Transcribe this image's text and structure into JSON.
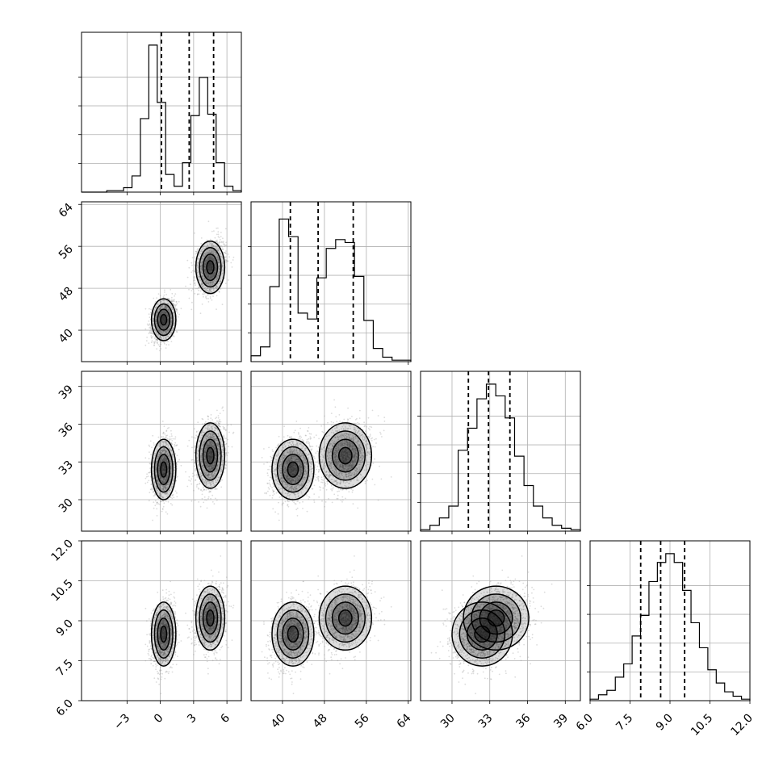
{
  "chart_data": {
    "type": "corner",
    "description_ticks": "tick labels as printed",
    "parameters": [
      {
        "ticks": [
          "−3",
          "0",
          "3",
          "6"
        ],
        "tick_values": [
          -3,
          0,
          3,
          6
        ],
        "range": [
          -7.1,
          7.3
        ],
        "quantiles": [
          0.1,
          2.6,
          4.8
        ]
      },
      {
        "ticks": [
          "40",
          "48",
          "56",
          "64"
        ],
        "tick_values": [
          40,
          48,
          56,
          64
        ],
        "range": [
          34.0,
          64.5
        ],
        "quantiles": [
          41.5,
          46.8,
          53.5
        ]
      },
      {
        "ticks": [
          "30",
          "33",
          "36",
          "39"
        ],
        "tick_values": [
          30,
          33,
          36,
          39
        ],
        "range": [
          27.5,
          40.2
        ],
        "quantiles": [
          31.3,
          32.9,
          34.6
        ]
      },
      {
        "ticks": [
          "6.0",
          "7.5",
          "9.0",
          "10.5",
          "12.0"
        ],
        "tick_values": [
          6.0,
          7.5,
          9.0,
          10.5,
          12.0
        ],
        "range": [
          6.0,
          12.0
        ],
        "quantiles": [
          7.9,
          8.65,
          9.55
        ]
      }
    ],
    "histograms": [
      [
        0.0,
        0.0,
        0.0,
        0.01,
        0.01,
        0.03,
        0.11,
        0.5,
        1.0,
        0.61,
        0.12,
        0.04,
        0.2,
        0.52,
        0.78,
        0.53,
        0.2,
        0.04,
        0.01
      ],
      [
        0.04,
        0.1,
        0.51,
        0.97,
        0.85,
        0.33,
        0.29,
        0.57,
        0.77,
        0.83,
        0.81,
        0.58,
        0.28,
        0.09,
        0.03,
        0.01,
        0.01
      ],
      [
        0.01,
        0.04,
        0.09,
        0.17,
        0.55,
        0.7,
        0.9,
        1.0,
        0.92,
        0.77,
        0.51,
        0.31,
        0.17,
        0.09,
        0.04,
        0.02,
        0.01
      ],
      [
        0.01,
        0.04,
        0.07,
        0.16,
        0.25,
        0.44,
        0.58,
        0.81,
        0.94,
        1.0,
        0.94,
        0.75,
        0.53,
        0.36,
        0.21,
        0.12,
        0.06,
        0.03,
        0.01
      ]
    ],
    "hist_bins": [
      [
        -7.1,
        7.3
      ],
      [
        34.0,
        64.5
      ],
      [
        27.5,
        40.2
      ],
      [
        6.0,
        12.0
      ]
    ],
    "modes": [
      {
        "weight": 0.5,
        "mean": [
          0.3,
          42.0,
          32.4,
          8.5
        ],
        "sd": [
          0.55,
          2.0,
          1.2,
          0.6
        ]
      },
      {
        "weight": 0.5,
        "mean": [
          4.5,
          52.0,
          33.5,
          9.1
        ],
        "sd": [
          0.65,
          2.5,
          1.3,
          0.6
        ]
      }
    ]
  }
}
